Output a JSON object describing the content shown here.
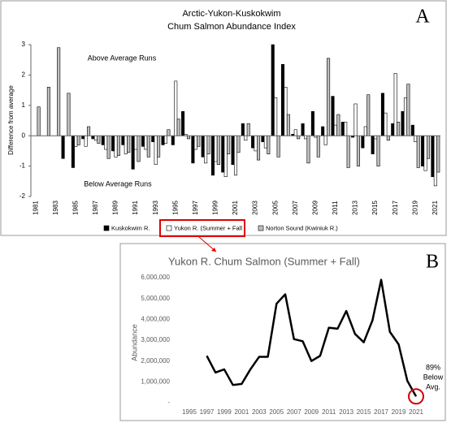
{
  "chart_data": [
    {
      "type": "bar",
      "panel": "A",
      "title": "Arctic-Yukon-Kuskokwim",
      "subtitle": "Chum Salmon Abundance Index",
      "y_label": "Difference from average",
      "annotations": [
        "Above Average Runs",
        "Below Average Runs"
      ],
      "categories": [
        "1981",
        null,
        "1983",
        null,
        "1985",
        null,
        "1987",
        null,
        "1989",
        null,
        "1991",
        null,
        "1993",
        null,
        "1995",
        null,
        "1997",
        null,
        "1999",
        null,
        "2001",
        null,
        "2003",
        null,
        "2005",
        null,
        "2007",
        null,
        "2009",
        null,
        "2011",
        null,
        "2013",
        null,
        "2015",
        null,
        "2017",
        null,
        "2019",
        null,
        "2021"
      ],
      "series": [
        {
          "name": "Kuskokwim R.",
          "color": "#000000",
          "values": [
            null,
            null,
            null,
            -0.75,
            -1.05,
            -0.1,
            -0.1,
            -0.3,
            -0.5,
            -0.3,
            -1.1,
            -0.35,
            -0.2,
            -0.3,
            -0.3,
            0.8,
            -0.9,
            -0.7,
            -1.3,
            -1.2,
            -0.95,
            0.4,
            -0.4,
            -0.2,
            3.0,
            2.35,
            0.05,
            0.4,
            0.8,
            0.3,
            1.3,
            0.45,
            -0.05,
            -0.4,
            -0.6,
            1.4,
            0.4,
            0.8,
            0.35,
            -1.0,
            -1.35
          ]
        },
        {
          "name": "Yukon R. (Summer + Fall",
          "color": "#ffffff",
          "values": [
            null,
            null,
            null,
            null,
            -0.35,
            -0.35,
            -0.15,
            -0.45,
            -0.7,
            -0.6,
            -0.45,
            -0.45,
            -0.95,
            -0.25,
            1.8,
            0.05,
            -0.45,
            -0.9,
            -0.85,
            -1.35,
            -1.3,
            -0.15,
            -0.5,
            -0.4,
            1.25,
            1.6,
            0.2,
            -0.1,
            -0.05,
            -0.3,
            0.35,
            0.45,
            1.05,
            0.3,
            -0.1,
            0.75,
            2.05,
            1.25,
            -0.2,
            -1.15,
            -1.65
          ]
        },
        {
          "name": "Norton Sound (Kwiniuk R.)",
          "color": "#bfbfbf",
          "values": [
            0.95,
            1.6,
            2.9,
            1.4,
            -0.3,
            0.3,
            -0.25,
            -0.75,
            -0.65,
            -0.55,
            -0.85,
            -0.7,
            -0.7,
            0.2,
            0.55,
            -0.1,
            -0.35,
            -0.6,
            -0.95,
            -0.6,
            -0.55,
            0.4,
            -0.8,
            -0.6,
            -0.7,
            0.7,
            -0.1,
            -0.9,
            -0.7,
            2.55,
            0.7,
            -1.05,
            -1.0,
            1.35,
            -1.0,
            -0.15,
            0.45,
            1.7,
            -1.05,
            -0.75,
            -1.2
          ]
        }
      ],
      "edgecolor": "#000000",
      "ylim": [
        -2,
        3
      ],
      "yticks": [
        -2,
        -1,
        0,
        1,
        2,
        3
      ],
      "legend": "bottom"
    },
    {
      "type": "line",
      "panel": "B",
      "title": "Yukon R. Chum Salmon (Summer + Fall)",
      "y_label": "Abundance",
      "annotation": [
        "89%",
        "Below",
        "Avg."
      ],
      "x": [
        1997,
        1998,
        1999,
        2000,
        2001,
        2002,
        2003,
        2004,
        2005,
        2006,
        2007,
        2008,
        2009,
        2010,
        2011,
        2012,
        2013,
        2014,
        2015,
        2016,
        2017,
        2018,
        2019,
        2020,
        2021
      ],
      "values": [
        2250000,
        1450000,
        1600000,
        850000,
        900000,
        1600000,
        2200000,
        2200000,
        4750000,
        5200000,
        3050000,
        2950000,
        2000000,
        2250000,
        3600000,
        3550000,
        4400000,
        3300000,
        2900000,
        3950000,
        5900000,
        3400000,
        2800000,
        1050000,
        300000
      ],
      "color": "#000000",
      "highlight_color": "#d00000",
      "xlim": [
        1995,
        2021
      ],
      "xticks": [
        1995,
        1997,
        1999,
        2001,
        2003,
        2005,
        2007,
        2009,
        2011,
        2013,
        2015,
        2017,
        2019,
        2021
      ],
      "ylim": [
        0,
        6000000
      ],
      "yticks": [
        {
          "value": 0,
          "label": "-"
        },
        {
          "value": 1000000,
          "label": "1,000,000"
        },
        {
          "value": 2000000,
          "label": "2,000,000"
        },
        {
          "value": 3000000,
          "label": "3,000,000"
        },
        {
          "value": 4000000,
          "label": "4,000,000"
        },
        {
          "value": 5000000,
          "label": "5,000,000"
        },
        {
          "value": 6000000,
          "label": "6,000,000"
        }
      ]
    }
  ]
}
